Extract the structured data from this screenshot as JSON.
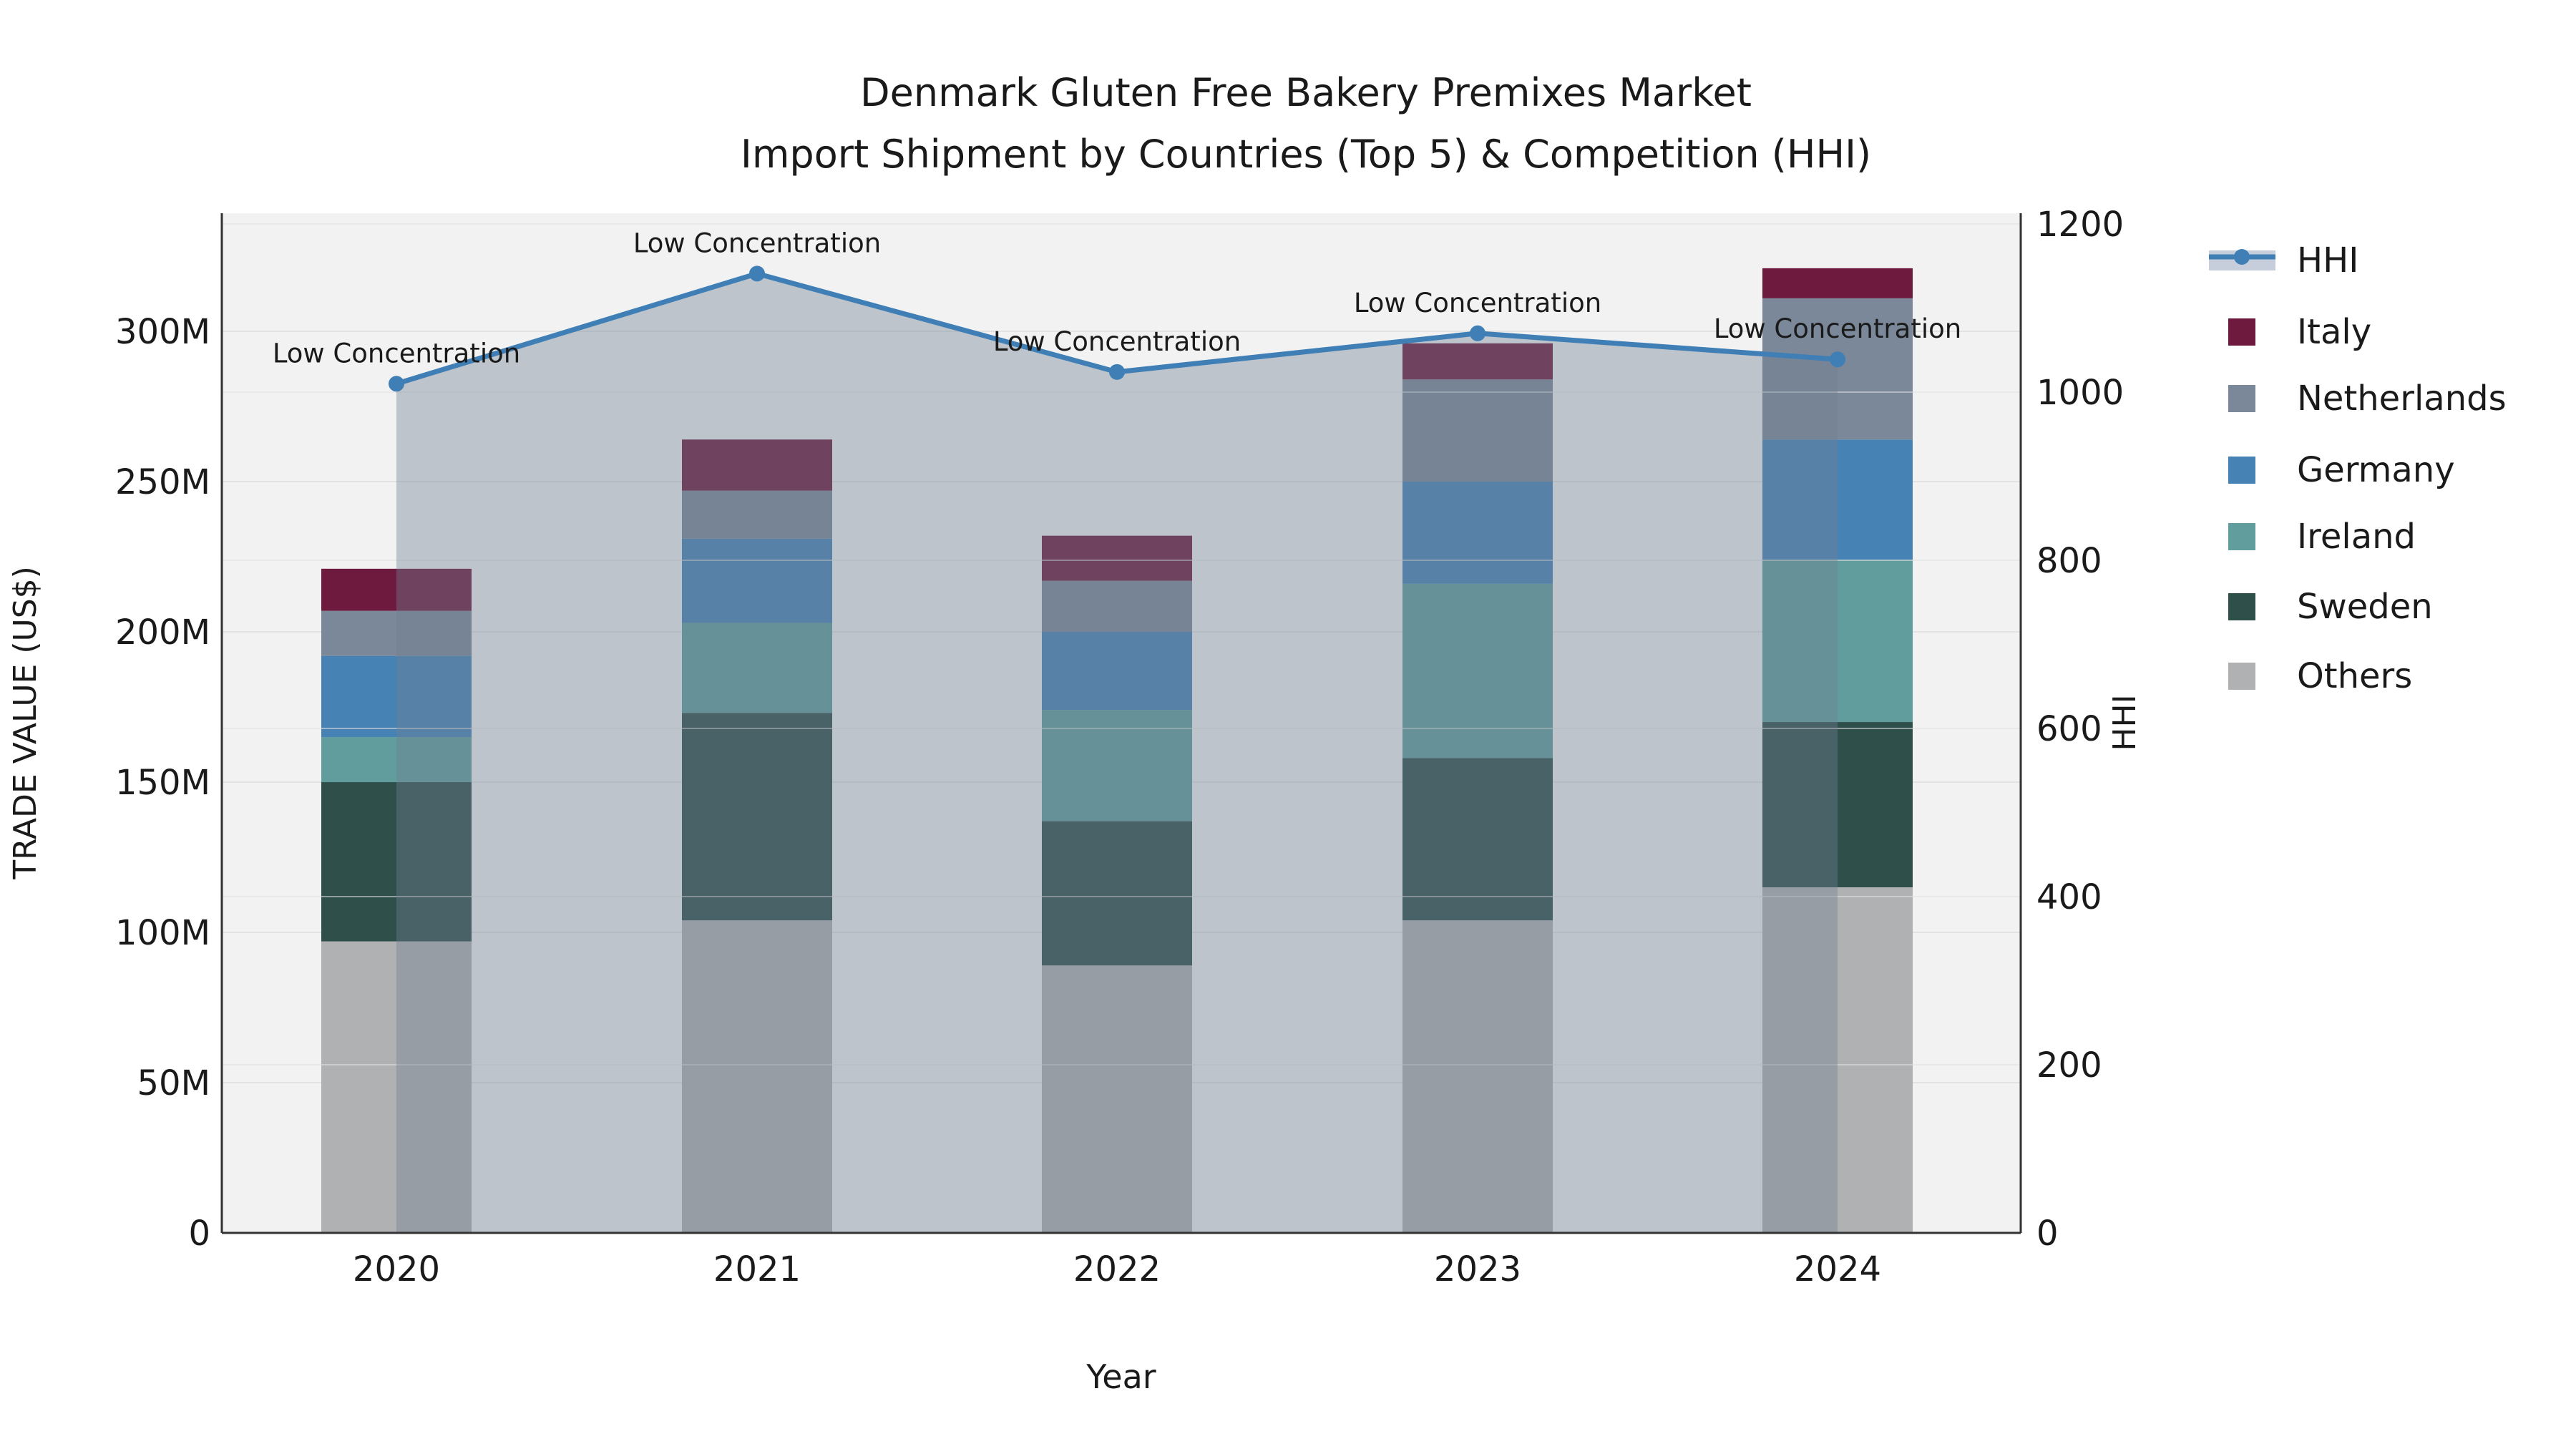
{
  "chart_data": {
    "type": "combo-stacked-bar-line",
    "title": "Denmark Gluten Free Bakery Premixes Market",
    "subtitle": "Import Shipment by Countries (Top 5) & Competition (HHI)",
    "xlabel": "Year",
    "ylabel_left": "TRADE VALUE (US$)",
    "ylabel_right": "HHI",
    "categories": [
      "2020",
      "2021",
      "2022",
      "2023",
      "2024"
    ],
    "stack_order_bottom_to_top": [
      "Others",
      "Sweden",
      "Ireland",
      "Germany",
      "Netherlands",
      "Italy"
    ],
    "series": [
      {
        "name": "Others",
        "values_musd": [
          97,
          104,
          89,
          104,
          115
        ],
        "color": "#b0b1b3"
      },
      {
        "name": "Sweden",
        "values_musd": [
          53,
          69,
          48,
          54,
          55
        ],
        "color": "#2f4f4b"
      },
      {
        "name": "Ireland",
        "values_musd": [
          15,
          30,
          37,
          58,
          54
        ],
        "color": "#629d9d"
      },
      {
        "name": "Germany",
        "values_musd": [
          27,
          28,
          26,
          34,
          40
        ],
        "color": "#4682b4"
      },
      {
        "name": "Netherlands",
        "values_musd": [
          15,
          16,
          17,
          34,
          47
        ],
        "color": "#7a8899"
      },
      {
        "name": "Italy",
        "values_musd": [
          14,
          17,
          15,
          12,
          10
        ],
        "color": "#6e1a3e"
      }
    ],
    "bar_totals_musd": [
      221,
      264,
      232,
      296,
      321
    ],
    "hhi_series": {
      "name": "HHI",
      "values": [
        1010,
        1141,
        1024,
        1070,
        1039
      ],
      "line_color": "#3f7fb6",
      "marker_color": "#3f7fb6",
      "area_fill": "rgba(112,128,144,0.40)",
      "legend_band_color": "#c6cedb"
    },
    "point_annotations": [
      "Low Concentration",
      "Low Concentration",
      "Low Concentration",
      "Low Concentration",
      "Low Concentration"
    ],
    "legend_order": [
      "HHI",
      "Italy",
      "Netherlands",
      "Germany",
      "Ireland",
      "Sweden",
      "Others"
    ],
    "axis_left": {
      "tick_labels": [
        "0",
        "50M",
        "100M",
        "150M",
        "200M",
        "250M",
        "300M"
      ],
      "tick_values_musd": [
        0,
        50,
        100,
        150,
        200,
        250,
        300
      ],
      "range_musd": [
        0,
        339.3
      ]
    },
    "axis_right": {
      "tick_labels": [
        "0",
        "200",
        "400",
        "600",
        "800",
        "1000",
        "1200"
      ],
      "tick_values": [
        0,
        200,
        400,
        600,
        800,
        1000,
        1200
      ],
      "range": [
        0,
        1212.8
      ]
    },
    "style": {
      "plot_bg": "#f2f2f2",
      "paper_bg": "#ffffff",
      "grid_color": "#e3e3e3",
      "grid_color_right": "rgba(225,225,225,0.55)",
      "spine_color": "#333333",
      "text_color": "#1a1a1a"
    }
  }
}
